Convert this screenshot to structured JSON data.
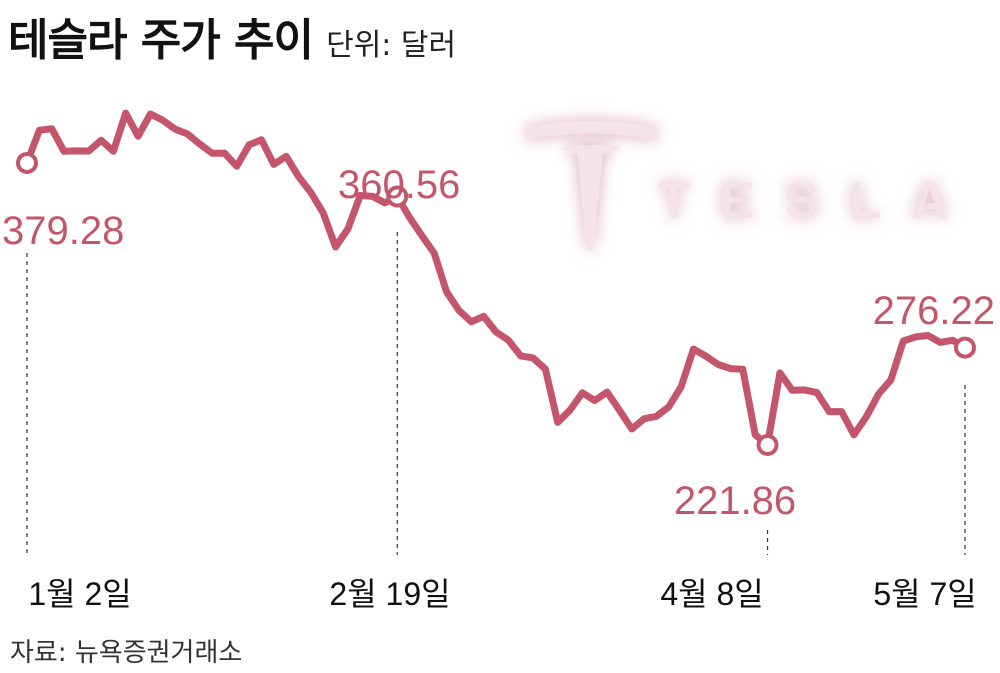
{
  "title": "테슬라 주가 추이",
  "unit_label": "단위: 달러",
  "source": "자료: 뉴욕증권거래소",
  "logo": {
    "text": "TESLA",
    "icon": "tesla-t-logo-icon",
    "color": "#f4e4e8"
  },
  "colors": {
    "line": "#c4566b",
    "marker_fill": "#ffffff"
  },
  "chart_data": {
    "type": "line",
    "ylim": [
      180,
      420
    ],
    "x_ticks": [
      "1월 2일",
      "2월 19일",
      "4월 8일",
      "5월 7일"
    ],
    "tick_indices": [
      0,
      30,
      60,
      76
    ],
    "annotations": [
      {
        "index": 0,
        "label": "379.28"
      },
      {
        "index": 30,
        "label": "360.56"
      },
      {
        "index": 60,
        "label": "221.86"
      },
      {
        "index": 76,
        "label": "276.22"
      }
    ],
    "series": [
      {
        "values": [
          379.28,
          397.5,
          398.4,
          385.8,
          386.0,
          385.9,
          392.0,
          385.8,
          407.1,
          394.2,
          406.6,
          403.1,
          398.2,
          395.5,
          389.8,
          384.7,
          384.8,
          377.4,
          389.4,
          392.2,
          378.5,
          383.0,
          371.7,
          362.8,
          351.4,
          332.4,
          342.5,
          361.1,
          360.6,
          357.0,
          360.56,
          348.8,
          338.7,
          328.8,
          307.3,
          297.0,
          290.6,
          293.7,
          285.0,
          280.4,
          271.6,
          270.5,
          264.2,
          234.5,
          241.4,
          251.0,
          246.7,
          251.4,
          241.3,
          230.8,
          236.5,
          237.9,
          243.2,
          254.3,
          275.4,
          271.5,
          266.8,
          264.5,
          264.1,
          227.6,
          221.86,
          262.1,
          252.4,
          252.6,
          251.1,
          240.5,
          240.5,
          227.5,
          237.6,
          250.3,
          258.2,
          279.9,
          282.2,
          283.0,
          279.1,
          280.3,
          276.22
        ]
      }
    ]
  }
}
